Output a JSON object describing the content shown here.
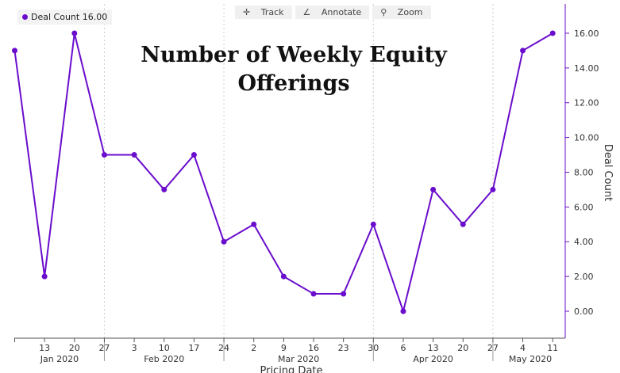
{
  "toolbar": {
    "track": "Track",
    "annotate": "Annotate",
    "zoom": "Zoom",
    "track_icon": "crosshair-icon",
    "annotate_icon": "pencil-icon",
    "zoom_icon": "magnifier-icon"
  },
  "legend": {
    "label": "Deal Count",
    "value": "16.00"
  },
  "chart_data": {
    "type": "line",
    "title": "Number of Weekly Equity Offerings",
    "xlabel": "Pricing Date",
    "ylabel": "Deal Count",
    "color": "#6a0dcc",
    "x": [
      "2020-01-06",
      "2020-01-13",
      "2020-01-20",
      "2020-01-27",
      "2020-02-03",
      "2020-02-10",
      "2020-02-17",
      "2020-02-24",
      "2020-03-02",
      "2020-03-09",
      "2020-03-16",
      "2020-03-23",
      "2020-03-30",
      "2020-04-06",
      "2020-04-13",
      "2020-04-20",
      "2020-04-27",
      "2020-05-04",
      "2020-05-11"
    ],
    "x_tick_labels": [
      "",
      "13",
      "20",
      "27",
      "3",
      "10",
      "17",
      "24",
      "2",
      "9",
      "16",
      "23",
      "30",
      "6",
      "13",
      "20",
      "27",
      "4",
      "11"
    ],
    "month_labels": [
      {
        "label": "Jan 2020",
        "from": 0,
        "to": 3
      },
      {
        "label": "Feb 2020",
        "from": 3,
        "to": 7
      },
      {
        "label": "Mar 2020",
        "from": 7,
        "to": 12
      },
      {
        "label": "Apr 2020",
        "from": 12,
        "to": 16
      },
      {
        "label": "May 2020",
        "from": 16,
        "to": 18.5
      }
    ],
    "series": [
      {
        "name": "Deal Count",
        "values": [
          15,
          2,
          16,
          9,
          9,
          7,
          9,
          4,
          5,
          2,
          1,
          1,
          5,
          0,
          7,
          5,
          7,
          15,
          16
        ]
      }
    ],
    "yticks": [
      0,
      2,
      4,
      6,
      8,
      10,
      12,
      14,
      16
    ],
    "ylim": [
      -1.5,
      17.5
    ],
    "y_axis_side": "right",
    "grid": "vertical dotted at month boundaries"
  }
}
